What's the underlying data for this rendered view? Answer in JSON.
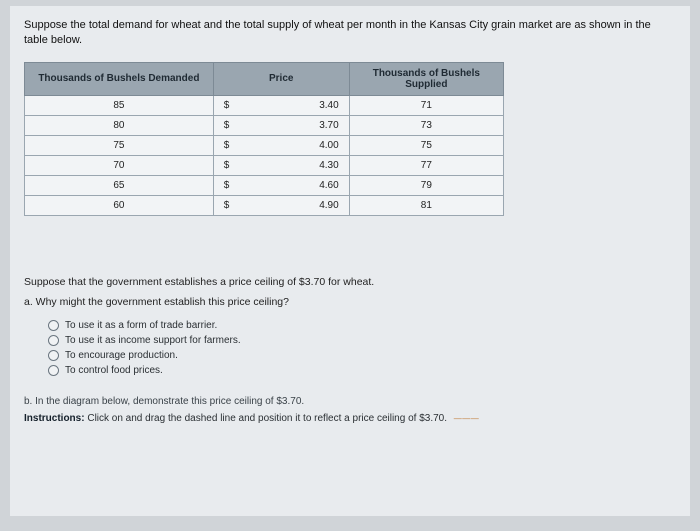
{
  "intro_text": "Suppose the total demand for wheat and the total supply of wheat per month in the Kansas City grain market are as shown in the table below.",
  "table": {
    "headers": {
      "demanded": "Thousands of Bushels Demanded",
      "price": "Price",
      "supplied": "Thousands of Bushels Supplied"
    },
    "currency_symbol": "$",
    "rows": [
      {
        "demanded": "85",
        "price": "3.40",
        "supplied": "71"
      },
      {
        "demanded": "80",
        "price": "3.70",
        "supplied": "73"
      },
      {
        "demanded": "75",
        "price": "4.00",
        "supplied": "75"
      },
      {
        "demanded": "70",
        "price": "4.30",
        "supplied": "77"
      },
      {
        "demanded": "65",
        "price": "4.60",
        "supplied": "79"
      },
      {
        "demanded": "60",
        "price": "4.90",
        "supplied": "81"
      }
    ],
    "col_widths": [
      "200px",
      "28px",
      "92px",
      "160px"
    ],
    "header_bg": "#9aa6b0",
    "cell_bg": "#f2f4f6",
    "border_color": "#9aa6b0"
  },
  "prompt2": "Suppose that the government establishes a price ceiling of $3.70 for wheat.",
  "question_a": "a. Why might the government establish this price ceiling?",
  "options": [
    "To use it as a form of trade barrier.",
    "To use it as income support for farmers.",
    "To encourage production.",
    "To control food prices."
  ],
  "question_b": "b. In the diagram below, demonstrate this price ceiling of $3.70.",
  "instructions_label": "Instructions:",
  "instructions_text": " Click on and drag the dashed line and position it to reflect a price ceiling of $3.70.",
  "accent_mark": "———"
}
